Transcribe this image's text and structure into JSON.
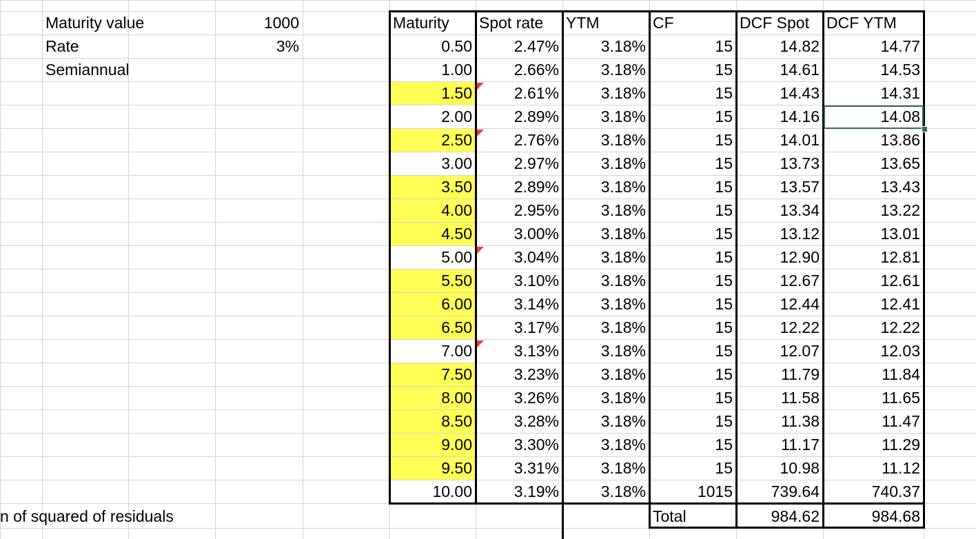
{
  "params": {
    "maturity_value_label": "Maturity value",
    "maturity_value": "1000",
    "rate_label": "Rate",
    "rate": "3%",
    "frequency_label": "Semiannual"
  },
  "footer": {
    "residuals_label": "n of squared of residuals",
    "total_label": "Total",
    "total_dcf_spot": "984.62",
    "total_dcf_ytm": "984.68"
  },
  "table": {
    "headers": [
      "Maturity",
      "Spot rate",
      "YTM",
      "CF",
      "DCF Spot",
      "DCF YTM"
    ],
    "rows": [
      [
        "0.50",
        "2.47%",
        "3.18%",
        "15",
        "14.82",
        "14.77"
      ],
      [
        "1.00",
        "2.66%",
        "3.18%",
        "15",
        "14.61",
        "14.53"
      ],
      [
        "1.50",
        "2.61%",
        "3.18%",
        "15",
        "14.43",
        "14.31"
      ],
      [
        "2.00",
        "2.89%",
        "3.18%",
        "15",
        "14.16",
        "14.08"
      ],
      [
        "2.50",
        "2.76%",
        "3.18%",
        "15",
        "14.01",
        "13.86"
      ],
      [
        "3.00",
        "2.97%",
        "3.18%",
        "15",
        "13.73",
        "13.65"
      ],
      [
        "3.50",
        "2.89%",
        "3.18%",
        "15",
        "13.57",
        "13.43"
      ],
      [
        "4.00",
        "2.95%",
        "3.18%",
        "15",
        "13.34",
        "13.22"
      ],
      [
        "4.50",
        "3.00%",
        "3.18%",
        "15",
        "13.12",
        "13.01"
      ],
      [
        "5.00",
        "3.04%",
        "3.18%",
        "15",
        "12.90",
        "12.81"
      ],
      [
        "5.50",
        "3.10%",
        "3.18%",
        "15",
        "12.67",
        "12.61"
      ],
      [
        "6.00",
        "3.14%",
        "3.18%",
        "15",
        "12.44",
        "12.41"
      ],
      [
        "6.50",
        "3.17%",
        "3.18%",
        "15",
        "12.22",
        "12.22"
      ],
      [
        "7.00",
        "3.13%",
        "3.18%",
        "15",
        "12.07",
        "12.03"
      ],
      [
        "7.50",
        "3.23%",
        "3.18%",
        "15",
        "11.79",
        "11.84"
      ],
      [
        "8.00",
        "3.26%",
        "3.18%",
        "15",
        "11.58",
        "11.65"
      ],
      [
        "8.50",
        "3.28%",
        "3.18%",
        "15",
        "11.38",
        "11.47"
      ],
      [
        "9.00",
        "3.30%",
        "3.18%",
        "15",
        "11.17",
        "11.29"
      ],
      [
        "9.50",
        "3.31%",
        "3.18%",
        "15",
        "10.98",
        "11.12"
      ],
      [
        "10.00",
        "3.19%",
        "3.18%",
        "1015",
        "739.64",
        "740.37"
      ]
    ],
    "highlighted_maturity_rows": [
      2,
      4,
      6,
      7,
      8,
      10,
      11,
      12,
      14,
      15,
      16,
      17,
      18
    ],
    "comment_flag_rows": [
      2,
      4,
      9,
      13
    ],
    "selected_cell": {
      "row": 3,
      "column": "DCF YTM"
    }
  },
  "colors": {
    "highlight": "#ffff55",
    "comment_flag": "#e8412c",
    "selection": "#2f7043",
    "gridline": "#d4d4d4",
    "table_border": "#000000"
  }
}
